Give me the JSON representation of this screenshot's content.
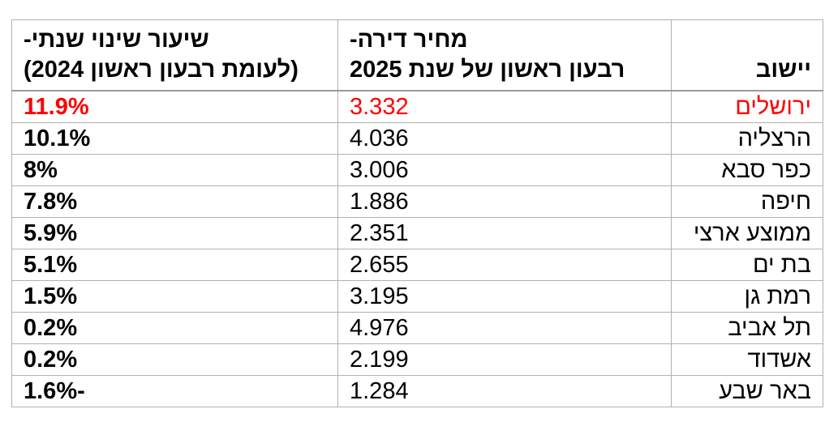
{
  "table": {
    "headers": {
      "city": "יישוב",
      "price_line1": "מחיר דירה-",
      "price_line2": "רבעון ראשון של שנת 2025",
      "change_line1": "שיעור שינוי שנתי-",
      "change_line2": "(לעומת רבעון ראשון 2024)"
    },
    "rows": [
      {
        "city": "ירושלים",
        "price": "3.332",
        "change": "11.9%"
      },
      {
        "city": "הרצליה",
        "price": "4.036",
        "change": "10.1%"
      },
      {
        "city": "כפר סבא",
        "price": "3.006",
        "change": "8%"
      },
      {
        "city": "חיפה",
        "price": "1.886",
        "change": "7.8%"
      },
      {
        "city": "ממוצע ארצי",
        "price": "2.351",
        "change": "5.9%"
      },
      {
        "city": "בת ים",
        "price": "2.655",
        "change": "5.1%"
      },
      {
        "city": "רמת גן",
        "price": "3.195",
        "change": "1.5%"
      },
      {
        "city": "תל אביב",
        "price": "4.976",
        "change": "0.2%"
      },
      {
        "city": "אשדוד",
        "price": "2.199",
        "change": "0.2%"
      },
      {
        "city": "באר שבע",
        "price": "1.284",
        "change": "-1.6%"
      }
    ],
    "highlight_color": "#ff0000"
  }
}
